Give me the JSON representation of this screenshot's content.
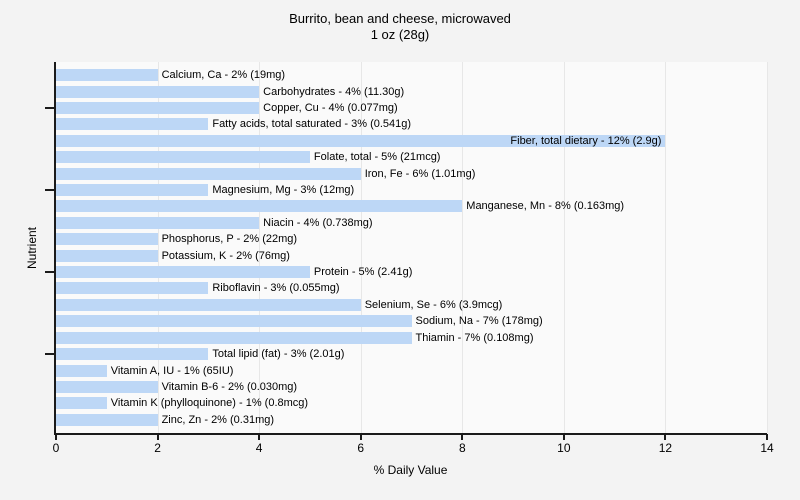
{
  "title": "Burrito, bean and cheese, microwaved",
  "subtitle": "1 oz (28g)",
  "chart_data": {
    "type": "bar",
    "orientation": "horizontal",
    "title": "Burrito, bean and cheese, microwaved",
    "subtitle": "1 oz (28g)",
    "xlabel": "% Daily Value",
    "ylabel": "Nutrient",
    "xlim": [
      0,
      14
    ],
    "xticks": [
      0,
      2,
      4,
      6,
      8,
      10,
      12,
      14
    ],
    "grid": "vertical gridlines every 2 units",
    "legend": "none",
    "bar_color": "#bdd7f6",
    "plot_bg": "#fafafa",
    "figure_bg": "#f3f3f3",
    "gridline_color": "#e7e7e7",
    "axis_color": "#1a1a1a",
    "ytick_row_indices": [
      2,
      7,
      12,
      17
    ],
    "bars": [
      {
        "nutrient": "Calcium, Ca",
        "percent": 2,
        "amount": "19mg",
        "label": "Calcium, Ca - 2% (19mg)",
        "label_inside": false
      },
      {
        "nutrient": "Carbohydrates",
        "percent": 4,
        "amount": "11.30g",
        "label": "Carbohydrates - 4% (11.30g)",
        "label_inside": false
      },
      {
        "nutrient": "Copper, Cu",
        "percent": 4,
        "amount": "0.077mg",
        "label": "Copper, Cu - 4% (0.077mg)",
        "label_inside": false
      },
      {
        "nutrient": "Fatty acids, total saturated",
        "percent": 3,
        "amount": "0.541g",
        "label": "Fatty acids, total saturated - 3% (0.541g)",
        "label_inside": false
      },
      {
        "nutrient": "Fiber, total dietary",
        "percent": 12,
        "amount": "2.9g",
        "label": "Fiber, total dietary - 12% (2.9g)",
        "label_inside": true
      },
      {
        "nutrient": "Folate, total",
        "percent": 5,
        "amount": "21mcg",
        "label": "Folate, total - 5% (21mcg)",
        "label_inside": false
      },
      {
        "nutrient": "Iron, Fe",
        "percent": 6,
        "amount": "1.01mg",
        "label": "Iron, Fe - 6% (1.01mg)",
        "label_inside": false
      },
      {
        "nutrient": "Magnesium, Mg",
        "percent": 3,
        "amount": "12mg",
        "label": "Magnesium, Mg - 3% (12mg)",
        "label_inside": false
      },
      {
        "nutrient": "Manganese, Mn",
        "percent": 8,
        "amount": "0.163mg",
        "label": "Manganese, Mn - 8% (0.163mg)",
        "label_inside": false
      },
      {
        "nutrient": "Niacin",
        "percent": 4,
        "amount": "0.738mg",
        "label": "Niacin - 4% (0.738mg)",
        "label_inside": false
      },
      {
        "nutrient": "Phosphorus, P",
        "percent": 2,
        "amount": "22mg",
        "label": "Phosphorus, P - 2% (22mg)",
        "label_inside": false
      },
      {
        "nutrient": "Potassium, K",
        "percent": 2,
        "amount": "76mg",
        "label": "Potassium, K - 2% (76mg)",
        "label_inside": false
      },
      {
        "nutrient": "Protein",
        "percent": 5,
        "amount": "2.41g",
        "label": "Protein - 5% (2.41g)",
        "label_inside": false
      },
      {
        "nutrient": "Riboflavin",
        "percent": 3,
        "amount": "0.055mg",
        "label": "Riboflavin - 3% (0.055mg)",
        "label_inside": false
      },
      {
        "nutrient": "Selenium, Se",
        "percent": 6,
        "amount": "3.9mcg",
        "label": "Selenium, Se - 6% (3.9mcg)",
        "label_inside": false
      },
      {
        "nutrient": "Sodium, Na",
        "percent": 7,
        "amount": "178mg",
        "label": "Sodium, Na - 7% (178mg)",
        "label_inside": false
      },
      {
        "nutrient": "Thiamin",
        "percent": 7,
        "amount": "0.108mg",
        "label": "Thiamin - 7% (0.108mg)",
        "label_inside": false
      },
      {
        "nutrient": "Total lipid (fat)",
        "percent": 3,
        "amount": "2.01g",
        "label": "Total lipid (fat) - 3% (2.01g)",
        "label_inside": false
      },
      {
        "nutrient": "Vitamin A, IU",
        "percent": 1,
        "amount": "65IU",
        "label": "Vitamin A, IU - 1% (65IU)",
        "label_inside": false
      },
      {
        "nutrient": "Vitamin B-6",
        "percent": 2,
        "amount": "0.030mg",
        "label": "Vitamin B-6 - 2% (0.030mg)",
        "label_inside": false
      },
      {
        "nutrient": "Vitamin K (phylloquinone)",
        "percent": 1,
        "amount": "0.8mcg",
        "label": "Vitamin K (phylloquinone) - 1% (0.8mcg)",
        "label_inside": false
      },
      {
        "nutrient": "Zinc, Zn",
        "percent": 2,
        "amount": "0.31mg",
        "label": "Zinc, Zn - 2% (0.31mg)",
        "label_inside": false
      }
    ]
  }
}
